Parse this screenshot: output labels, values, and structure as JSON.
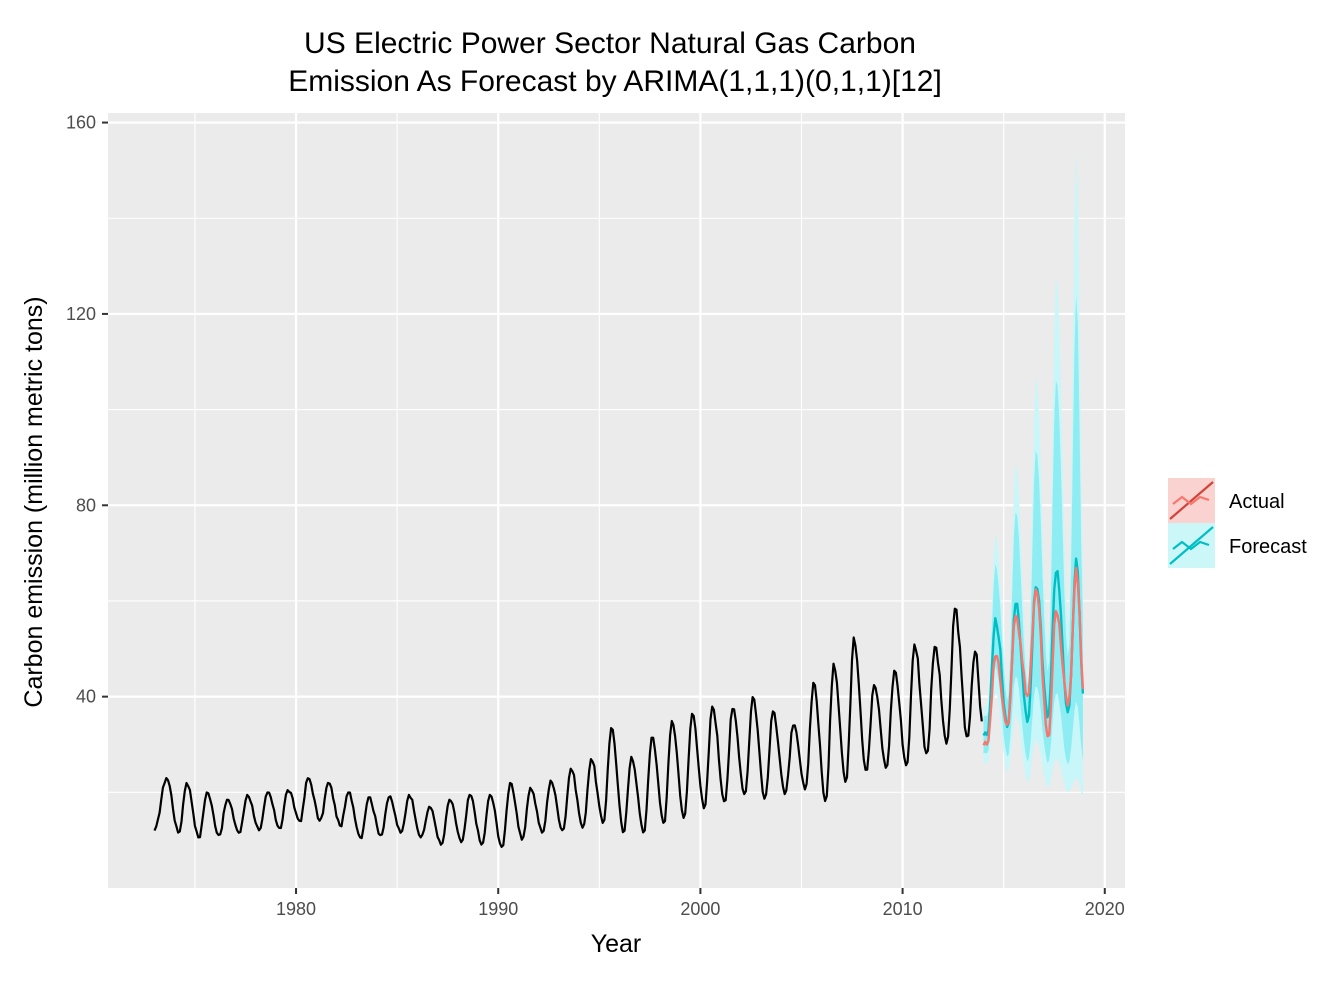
{
  "chart_data": {
    "type": "line",
    "title": "US Electric Power Sector Natural Gas Carbon\nEmission As Forecast by ARIMA(1,1,1)(0,1,1)[12]",
    "title_lines": [
      "US Electric Power Sector Natural Gas Carbon",
      "Emission As Forecast by ARIMA(1,1,1)(0,1,1)[12]"
    ],
    "xlabel": "Year",
    "ylabel": "Carbon emission (million metric tons)",
    "xlim": [
      1970.7,
      2021.0
    ],
    "ylim": [
      0,
      162
    ],
    "x_ticks": [
      1980,
      1990,
      2000,
      2010,
      2020
    ],
    "x_tick_labels": [
      "1980",
      "1990",
      "2000",
      "2010",
      "2020"
    ],
    "y_ticks": [
      40,
      80,
      120,
      160
    ],
    "y_tick_labels": [
      "40",
      "80",
      "120",
      "160"
    ],
    "grid": true,
    "legend": {
      "position": "right",
      "entries": [
        {
          "label": "Actual",
          "color": "#F8766D",
          "band_color": "#F8766D"
        },
        {
          "label": "Forecast",
          "color": "#00BFC4",
          "band_color": "#00E5EE"
        }
      ]
    },
    "historical": {
      "color": "#000000",
      "start": 1973.0,
      "frequency": 12,
      "peaks": [
        [
          1973.6,
          23.0
        ],
        [
          1974.6,
          22.0
        ],
        [
          1975.6,
          20.0
        ],
        [
          1976.6,
          18.5
        ],
        [
          1977.6,
          19.5
        ],
        [
          1978.6,
          20.0
        ],
        [
          1979.6,
          20.5
        ],
        [
          1980.6,
          23.0
        ],
        [
          1981.6,
          22.0
        ],
        [
          1982.6,
          20.0
        ],
        [
          1983.6,
          19.0
        ],
        [
          1984.6,
          19.0
        ],
        [
          1985.6,
          19.5
        ],
        [
          1986.6,
          17.0
        ],
        [
          1987.6,
          18.5
        ],
        [
          1988.6,
          19.5
        ],
        [
          1989.6,
          19.5
        ],
        [
          1990.6,
          22.0
        ],
        [
          1991.6,
          21.0
        ],
        [
          1992.6,
          22.5
        ],
        [
          1993.6,
          25.0
        ],
        [
          1994.6,
          27.0
        ],
        [
          1995.6,
          33.5
        ],
        [
          1996.6,
          27.5
        ],
        [
          1997.6,
          31.5
        ],
        [
          1998.6,
          35.0
        ],
        [
          1999.6,
          36.5
        ],
        [
          2000.6,
          38.0
        ],
        [
          2001.6,
          37.5
        ],
        [
          2002.6,
          40.0
        ],
        [
          2003.6,
          37.0
        ],
        [
          2004.6,
          34.0
        ],
        [
          2005.6,
          43.0
        ],
        [
          2006.6,
          47.0
        ],
        [
          2007.6,
          52.5
        ],
        [
          2008.6,
          42.5
        ],
        [
          2009.6,
          45.5
        ],
        [
          2010.6,
          51.0
        ],
        [
          2011.6,
          50.5
        ],
        [
          2012.6,
          58.5
        ],
        [
          2013.6,
          49.5
        ]
      ],
      "troughs": [
        [
          1973.0,
          12.0
        ],
        [
          1974.2,
          11.5
        ],
        [
          1975.2,
          10.5
        ],
        [
          1976.2,
          11.0
        ],
        [
          1977.2,
          11.5
        ],
        [
          1978.2,
          12.0
        ],
        [
          1979.2,
          12.5
        ],
        [
          1980.2,
          14.0
        ],
        [
          1981.2,
          14.0
        ],
        [
          1982.2,
          13.0
        ],
        [
          1983.2,
          10.5
        ],
        [
          1984.2,
          11.0
        ],
        [
          1985.2,
          11.5
        ],
        [
          1986.2,
          10.5
        ],
        [
          1987.2,
          9.0
        ],
        [
          1988.2,
          9.5
        ],
        [
          1989.2,
          9.0
        ],
        [
          1990.2,
          8.5
        ],
        [
          1991.2,
          10.0
        ],
        [
          1992.2,
          11.5
        ],
        [
          1993.2,
          12.0
        ],
        [
          1994.2,
          12.5
        ],
        [
          1995.2,
          13.5
        ],
        [
          1996.2,
          11.5
        ],
        [
          1997.2,
          11.5
        ],
        [
          1998.2,
          13.5
        ],
        [
          1999.2,
          14.5
        ],
        [
          2000.2,
          16.5
        ],
        [
          2001.2,
          18.0
        ],
        [
          2002.2,
          19.5
        ],
        [
          2003.2,
          18.5
        ],
        [
          2004.2,
          19.5
        ],
        [
          2005.2,
          20.5
        ],
        [
          2006.2,
          18.0
        ],
        [
          2007.2,
          22.0
        ],
        [
          2008.2,
          24.5
        ],
        [
          2009.2,
          25.0
        ],
        [
          2010.2,
          25.5
        ],
        [
          2011.2,
          28.0
        ],
        [
          2012.2,
          30.0
        ],
        [
          2013.2,
          31.5
        ],
        [
          2013.95,
          34.5
        ]
      ]
    },
    "actual": {
      "color": "#F8766D",
      "start": 2014.0,
      "end": 2018.95,
      "peaks": [
        [
          2014.6,
          48.5
        ],
        [
          2015.6,
          57.0
        ],
        [
          2016.6,
          62.5
        ],
        [
          2017.6,
          58.0
        ],
        [
          2018.6,
          67.0
        ]
      ],
      "troughs": [
        [
          2014.2,
          30.0
        ],
        [
          2015.2,
          34.0
        ],
        [
          2016.2,
          40.0
        ],
        [
          2017.2,
          31.5
        ],
        [
          2018.2,
          38.0
        ],
        [
          2018.95,
          41.0
        ]
      ]
    },
    "forecast": {
      "color": "#00BFC4",
      "start": 2014.0,
      "end": 2018.95,
      "peaks": [
        [
          2014.6,
          56.5
        ],
        [
          2015.6,
          59.5
        ],
        [
          2016.6,
          63.0
        ],
        [
          2017.6,
          66.0
        ],
        [
          2018.6,
          69.0
        ]
      ],
      "troughs": [
        [
          2014.2,
          32.0
        ],
        [
          2015.2,
          33.5
        ],
        [
          2016.2,
          34.5
        ],
        [
          2017.2,
          35.5
        ],
        [
          2018.2,
          36.5
        ],
        [
          2018.95,
          40.0
        ]
      ],
      "band_peak_upper_95": [
        74.0,
        89.0,
        107.0,
        128.0,
        154.0
      ],
      "band_peak_lower_95": [
        41.0,
        36.0,
        31.0,
        27.0,
        23.0
      ],
      "band_trough_upper_95": [
        38.0,
        42.0,
        46.0,
        50.0,
        54.0,
        62.0
      ],
      "band_trough_lower_95": [
        26.0,
        24.0,
        22.0,
        21.0,
        20.0,
        19.0
      ],
      "band_80_fraction": 0.65
    }
  }
}
